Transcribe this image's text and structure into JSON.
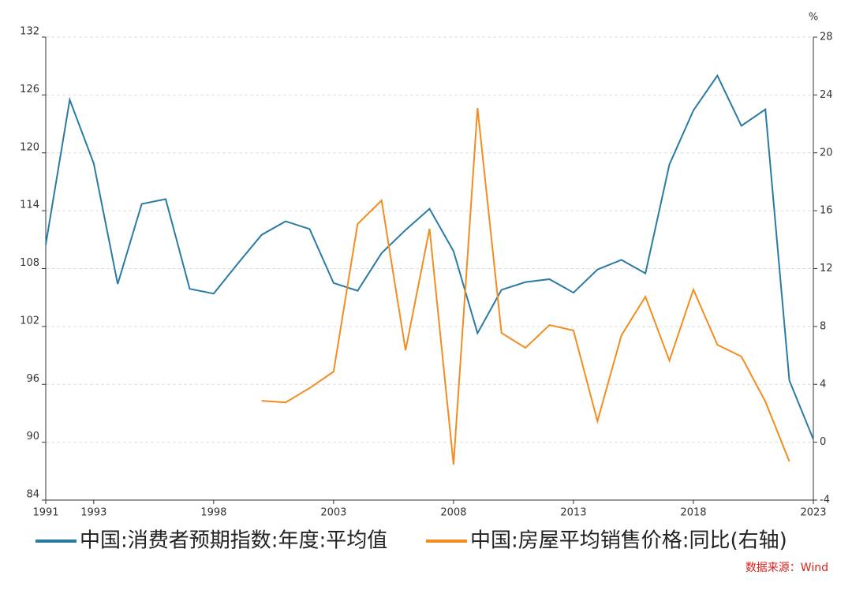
{
  "chart_data": {
    "type": "line",
    "x": [
      1991,
      1992,
      1993,
      1994,
      1995,
      1996,
      1997,
      1998,
      1999,
      2000,
      2001,
      2002,
      2003,
      2004,
      2005,
      2006,
      2007,
      2008,
      2009,
      2010,
      2011,
      2012,
      2013,
      2014,
      2015,
      2016,
      2017,
      2018,
      2019,
      2020,
      2021,
      2022,
      2023
    ],
    "xlim": [
      1991,
      2023
    ],
    "xticks": [
      1991,
      1993,
      1998,
      2003,
      2008,
      2013,
      2018,
      2023
    ],
    "ylim": [
      84,
      132
    ],
    "yticks": [
      84,
      90,
      96,
      102,
      108,
      114,
      120,
      126,
      132
    ],
    "y2lim": [
      -4,
      28
    ],
    "y2ticks": [
      -4,
      0,
      4,
      8,
      12,
      16,
      20,
      24,
      28
    ],
    "y2_unit": "%",
    "grid": true,
    "series": [
      {
        "name": "中国:消费者预期指数:年度:平均值",
        "color": "#2a7ba3",
        "values": [
          110.5,
          125.5,
          118.9,
          106.4,
          114.7,
          115.2,
          105.9,
          105.4,
          108.5,
          111.5,
          112.9,
          112.1,
          106.5,
          105.7,
          109.6,
          112.0,
          114.2,
          109.8,
          101.3,
          105.8,
          106.6,
          106.9,
          105.5,
          107.9,
          108.9,
          107.5,
          118.8,
          124.4,
          128.0,
          122.8,
          124.5,
          96.4,
          90.3
        ]
      },
      {
        "name": "中国:房屋平均销售价格:同比(右轴)",
        "color": "#f28d1f",
        "axis": "y2",
        "values": [
          null,
          null,
          null,
          null,
          null,
          null,
          null,
          null,
          null,
          2.86,
          2.75,
          3.74,
          4.88,
          15.08,
          16.71,
          6.35,
          14.75,
          -1.55,
          23.09,
          7.55,
          6.52,
          8.1,
          7.72,
          1.45,
          7.39,
          10.06,
          5.64,
          10.55,
          6.73,
          5.92,
          2.81,
          -1.33,
          null
        ]
      }
    ],
    "source": "数据来源：Wind"
  }
}
